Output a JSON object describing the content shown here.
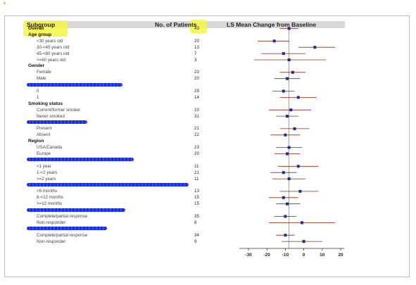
{
  "chart_data": {
    "type": "forest",
    "title": "",
    "columns": {
      "subgroup": "Subgroup",
      "patients": "No. of Patients",
      "effect": "LS Mean Change from Baseline"
    },
    "xlim": [
      -35,
      22
    ],
    "xticks": [
      -30,
      -20,
      -10,
      0,
      10,
      20
    ],
    "reference_line": -8,
    "rows": [
      {
        "label": "Overall",
        "type": "top",
        "n": "43",
        "est": -8,
        "lo": -13,
        "hi": -3
      },
      {
        "label": "Age group",
        "type": "group"
      },
      {
        "label": "<30 years old",
        "type": "item",
        "n": "20",
        "est": -16,
        "lo": -25,
        "hi": -8
      },
      {
        "label": "30-<45 years old",
        "type": "item",
        "n": "13",
        "est": 6,
        "lo": -3,
        "hi": 17
      },
      {
        "label": "45-<60 years old",
        "type": "item",
        "n": "7",
        "est": -11,
        "lo": -23,
        "hi": 1
      },
      {
        "label": ">=60 years old",
        "type": "item",
        "n": "3",
        "est": -8,
        "lo": -27,
        "hi": 12
      },
      {
        "label": "Gender",
        "type": "group"
      },
      {
        "label": "Female",
        "type": "item",
        "n": "23",
        "est": -6,
        "lo": -13,
        "hi": 1
      },
      {
        "label": "Male",
        "type": "item",
        "n": "20",
        "est": -9,
        "lo": -16,
        "hi": -2
      },
      {
        "label": "",
        "type": "group",
        "redacted": true,
        "rw": 136
      },
      {
        "label": "0",
        "type": "item",
        "n": "29",
        "est": -11,
        "lo": -17,
        "hi": -5
      },
      {
        "label": "1",
        "type": "item",
        "n": "14",
        "est": -3,
        "lo": -13,
        "hi": 7
      },
      {
        "label": "Smoking status",
        "type": "group"
      },
      {
        "label": "Current/former smoker",
        "type": "item",
        "n": "10",
        "est": -7,
        "lo": -19,
        "hi": 4
      },
      {
        "label": "Never smoked",
        "type": "item",
        "n": "31",
        "est": -9,
        "lo": -15,
        "hi": -3
      },
      {
        "label": "",
        "type": "group",
        "redacted": true,
        "rw": 86
      },
      {
        "label": "Present",
        "type": "item",
        "n": "21",
        "est": -5,
        "lo": -13,
        "hi": 3
      },
      {
        "label": "Absent",
        "type": "item",
        "n": "22",
        "est": -10,
        "lo": -18,
        "hi": -2
      },
      {
        "label": "Region",
        "type": "group"
      },
      {
        "label": "USA/Canada",
        "type": "item",
        "n": "23",
        "est": -8,
        "lo": -15,
        "hi": -1
      },
      {
        "label": "Europe",
        "type": "item",
        "n": "20",
        "est": -9,
        "lo": -16,
        "hi": -2
      },
      {
        "label": "",
        "type": "group",
        "redacted": true,
        "rw": 152
      },
      {
        "label": "<1 year",
        "type": "item",
        "n": "11",
        "est": -3,
        "lo": -14,
        "hi": 8
      },
      {
        "label": "1-<2 years",
        "type": "item",
        "n": "21",
        "est": -11,
        "lo": -18,
        "hi": -4
      },
      {
        "label": ">=2 years",
        "type": "item",
        "n": "11",
        "est": -8,
        "lo": -17,
        "hi": 1
      },
      {
        "label": "",
        "type": "group",
        "redacted": true,
        "rw": 230
      },
      {
        "label": "<6 months",
        "type": "item",
        "n": "13",
        "est": -2,
        "lo": -13,
        "hi": 8
      },
      {
        "label": "6-<12 months",
        "type": "item",
        "n": "15",
        "est": -11,
        "lo": -19,
        "hi": -3
      },
      {
        "label": ">=12 months",
        "type": "item",
        "n": "15",
        "est": -9,
        "lo": -15,
        "hi": -2
      },
      {
        "label": "",
        "type": "group",
        "redacted": true,
        "rw": 140
      },
      {
        "label": "Complete/partial response",
        "type": "item",
        "n": "35",
        "est": -10,
        "lo": -16,
        "hi": -4
      },
      {
        "label": "Non-responder",
        "type": "item",
        "n": "8",
        "est": -1,
        "lo": -19,
        "hi": 17
      },
      {
        "label": "",
        "type": "group",
        "redacted": true,
        "rw": 114
      },
      {
        "label": "Complete/partial response",
        "type": "item",
        "n": "34",
        "est": -10,
        "lo": -15,
        "hi": -5
      },
      {
        "label": "Non-responder",
        "type": "item",
        "n": "9",
        "est": 0,
        "lo": -12,
        "hi": 10
      }
    ],
    "colors": {
      "marker": "#1a2e9c",
      "ci": "#8b2b10",
      "axis": "#333333",
      "reference": "#666666",
      "header_bg": "#d9d9d9",
      "highlight": "#f5f542",
      "redaction": "#1b2fd6"
    }
  }
}
